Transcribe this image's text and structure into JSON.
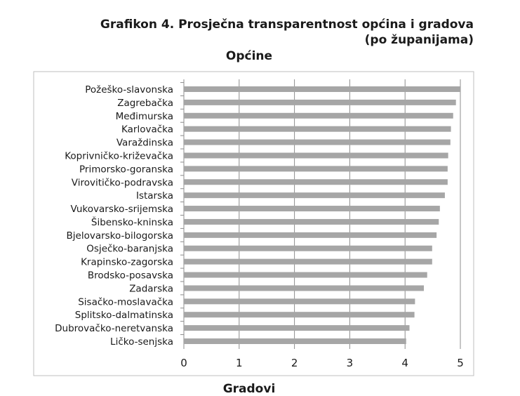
{
  "figure": {
    "title_line1": "Grafikon 4. Prosječna transparentnost općina i gradova",
    "title_line2": "(po županijama)"
  },
  "next_section_title": "Gradovi",
  "colors": {
    "bar": "#a6a6a6",
    "grid": "#8c8c8c",
    "frame": "#bfbfbf"
  },
  "chart_data": {
    "type": "bar",
    "orientation": "horizontal",
    "title": "Općine",
    "xlabel": "",
    "ylabel": "",
    "xlim": [
      0,
      5
    ],
    "xticks": [
      0,
      1,
      2,
      3,
      4,
      5
    ],
    "grid": true,
    "legend": "none",
    "categories": [
      "Požeško-slavonska",
      "Zagrebačka",
      "Međimurska",
      "Karlovačka",
      "Varaždinska",
      "Koprivničko-križevačka",
      "Primorsko-goranska",
      "Virovitičko-podravska",
      "Istarska",
      "Vukovarsko-srijemska",
      "Šibensko-kninska",
      "Bjelovarsko-bilogorska",
      "Osječko-baranjska",
      "Krapinsko-zagorska",
      "Brodsko-posavska",
      "Zadarska",
      "Sisačko-moslavačka",
      "Splitsko-dalmatinska",
      "Dubrovačko-neretvanska",
      "Ličko-senjska"
    ],
    "values": [
      5.0,
      4.92,
      4.87,
      4.83,
      4.82,
      4.78,
      4.77,
      4.77,
      4.72,
      4.63,
      4.61,
      4.57,
      4.49,
      4.49,
      4.4,
      4.34,
      4.18,
      4.17,
      4.08,
      4.02
    ]
  }
}
